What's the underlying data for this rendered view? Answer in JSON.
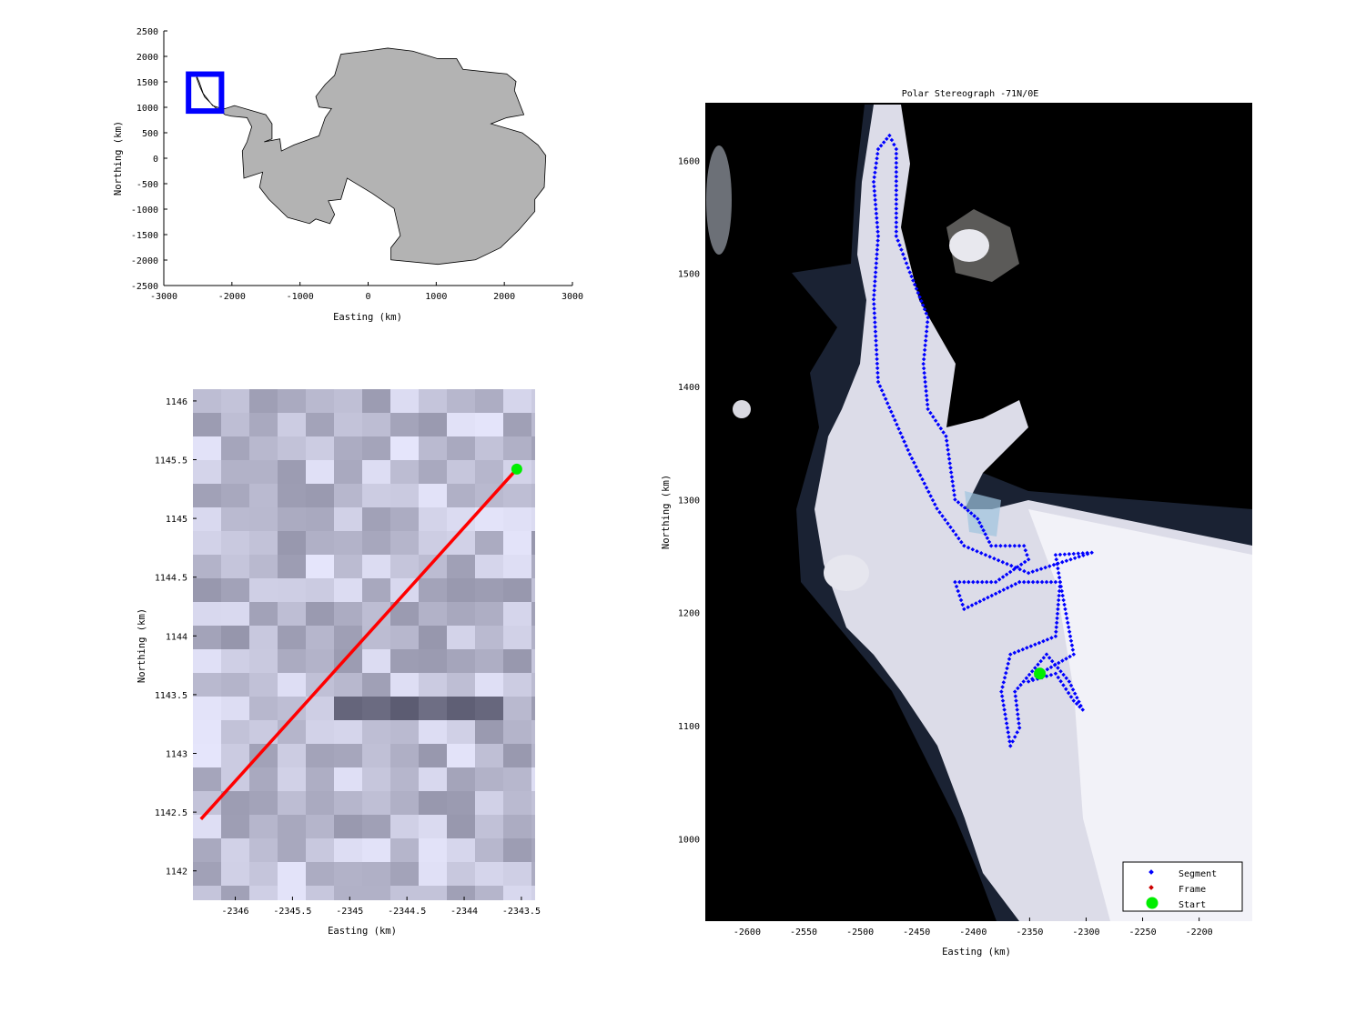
{
  "chart_data": [
    {
      "type": "map",
      "title": "",
      "xlabel": "Easting (km)",
      "ylabel": "Northing (km)",
      "xlim": [
        -3000,
        3000
      ],
      "ylim": [
        -2500,
        2500
      ],
      "xticks": [
        -3000,
        -2000,
        -1000,
        0,
        1000,
        2000,
        3000
      ],
      "yticks": [
        2500,
        2000,
        1500,
        1000,
        500,
        0,
        -500,
        -1000,
        -1500,
        -2000,
        -2500
      ],
      "colors": {
        "land": "#b3b3b3",
        "coast": "#000000",
        "box": "#0000ff"
      },
      "outline": [
        [
          -2513,
          1597
        ],
        [
          -2480,
          1500
        ],
        [
          -2421,
          1271
        ],
        [
          -2283,
          1033
        ],
        [
          -2146,
          974
        ],
        [
          -2100,
          974
        ],
        [
          -1962,
          1033
        ],
        [
          -1503,
          855
        ],
        [
          -1411,
          677
        ],
        [
          -1411,
          380
        ],
        [
          -1526,
          321
        ],
        [
          -1296,
          380
        ],
        [
          -1273,
          142
        ],
        [
          -1089,
          261
        ],
        [
          -722,
          439
        ],
        [
          -630,
          796
        ],
        [
          -538,
          974
        ],
        [
          -722,
          1004
        ],
        [
          -768,
          1211
        ],
        [
          -630,
          1449
        ],
        [
          -492,
          1627
        ],
        [
          -400,
          2043
        ],
        [
          -33,
          2102
        ],
        [
          289,
          2162
        ],
        [
          656,
          2102
        ],
        [
          1024,
          1954
        ],
        [
          1300,
          1954
        ],
        [
          1392,
          1746
        ],
        [
          1805,
          1686
        ],
        [
          2035,
          1657
        ],
        [
          2172,
          1508
        ],
        [
          2149,
          1330
        ],
        [
          2287,
          855
        ],
        [
          2035,
          796
        ],
        [
          1805,
          677
        ],
        [
          2264,
          499
        ],
        [
          2494,
          261
        ],
        [
          2609,
          53
        ],
        [
          2586,
          -570
        ],
        [
          2448,
          -808
        ],
        [
          2448,
          -1045
        ],
        [
          2218,
          -1401
        ],
        [
          1943,
          -1758
        ],
        [
          1575,
          -1995
        ],
        [
          1024,
          -2084
        ],
        [
          335,
          -1995
        ],
        [
          335,
          -1758
        ],
        [
          473,
          -1520
        ],
        [
          381,
          -986
        ],
        [
          59,
          -689
        ],
        [
          -308,
          -392
        ],
        [
          -400,
          -808
        ],
        [
          -584,
          -837
        ],
        [
          -492,
          -1105
        ],
        [
          -561,
          -1283
        ],
        [
          -768,
          -1194
        ],
        [
          -860,
          -1283
        ],
        [
          -1181,
          -1164
        ],
        [
          -1457,
          -808
        ],
        [
          -1594,
          -570
        ],
        [
          -1549,
          -273
        ],
        [
          -1686,
          -332
        ],
        [
          -1824,
          -392
        ],
        [
          -1847,
          142
        ],
        [
          -1778,
          321
        ],
        [
          -1709,
          618
        ],
        [
          -1778,
          796
        ],
        [
          -2008,
          826
        ],
        [
          -2100,
          855
        ],
        [
          -2250,
          1000
        ],
        [
          -2400,
          1200
        ],
        [
          -2470,
          1400
        ],
        [
          -2520,
          1580
        ]
      ],
      "region_box": {
        "x": [
          -2637,
          -2153
        ],
        "y": [
          927,
          1651
        ]
      }
    },
    {
      "type": "line",
      "title": "",
      "xlabel": "Easting (km)",
      "ylabel": "Northing (km)",
      "xlim": [
        -2346.37,
        -2343.38
      ],
      "ylim": [
        1141.75,
        1146.1
      ],
      "xticks": [
        "-2346",
        "-2345.5",
        "-2345",
        "-2344.5",
        "-2344",
        "-2343.5"
      ],
      "xtick_values": [
        -2346,
        -2345.5,
        -2345,
        -2344.5,
        -2344,
        -2343.5
      ],
      "yticks": [
        "1146",
        "1145.5",
        "1145",
        "1144.5",
        "1144",
        "1143.5",
        "1143",
        "1142.5",
        "1142"
      ],
      "ytick_values": [
        1146,
        1145.5,
        1145,
        1144.5,
        1144,
        1143.5,
        1143,
        1142.5,
        1142
      ],
      "frame_line": [
        [
          -2346.3,
          1142.44
        ],
        [
          -2343.54,
          1145.42
        ]
      ],
      "start": [
        -2343.54,
        1145.42
      ],
      "colors": {
        "frame": "#ff0000",
        "start": "#00ee00"
      }
    },
    {
      "type": "scatter",
      "title": "Polar Stereograph -71N/0E",
      "xlabel": "Easting (km)",
      "ylabel": "Northing (km)",
      "xlim": [
        -2637,
        -2153
      ],
      "ylim": [
        927,
        1651
      ],
      "xticks": [
        -2600,
        -2550,
        -2500,
        -2450,
        -2400,
        -2350,
        -2300,
        -2250,
        -2200
      ],
      "yticks": [
        1600,
        1500,
        1400,
        1300,
        1200,
        1100,
        1000
      ],
      "legend": {
        "position": "bottom-right",
        "entries": [
          "Segment",
          "Frame",
          "Start"
        ]
      },
      "colors": {
        "segment": "#0000ff",
        "frame": "#ff0000",
        "start": "#00ee00"
      },
      "segment_track": [
        [
          -2341,
          1146
        ],
        [
          -2311,
          1163
        ],
        [
          -2323,
          1227
        ],
        [
          -2327,
          1251
        ],
        [
          -2295,
          1253
        ],
        [
          -2351,
          1235
        ],
        [
          -2408,
          1259
        ],
        [
          -2432,
          1292
        ],
        [
          -2456,
          1340
        ],
        [
          -2484,
          1404
        ],
        [
          -2488,
          1477
        ],
        [
          -2484,
          1533
        ],
        [
          -2488,
          1581
        ],
        [
          -2484,
          1610
        ],
        [
          -2474,
          1622
        ],
        [
          -2468,
          1610
        ],
        [
          -2468,
          1533
        ],
        [
          -2456,
          1501
        ],
        [
          -2440,
          1461
        ],
        [
          -2444,
          1420
        ],
        [
          -2440,
          1380
        ],
        [
          -2424,
          1356
        ],
        [
          -2416,
          1300
        ],
        [
          -2396,
          1283
        ],
        [
          -2384,
          1259
        ],
        [
          -2355,
          1259
        ],
        [
          -2351,
          1247
        ],
        [
          -2380,
          1227
        ],
        [
          -2416,
          1227
        ],
        [
          -2408,
          1203
        ],
        [
          -2359,
          1227
        ],
        [
          -2323,
          1227
        ],
        [
          -2327,
          1179
        ],
        [
          -2367,
          1163
        ],
        [
          -2375,
          1130
        ],
        [
          -2367,
          1082
        ],
        [
          -2359,
          1098
        ],
        [
          -2363,
          1130
        ],
        [
          -2335,
          1163
        ],
        [
          -2315,
          1139
        ],
        [
          -2303,
          1114
        ],
        [
          -2311,
          1122
        ],
        [
          -2327,
          1146
        ],
        [
          -2351,
          1139
        ],
        [
          -2341,
          1146
        ]
      ],
      "start": [
        -2341,
        1146
      ]
    }
  ]
}
